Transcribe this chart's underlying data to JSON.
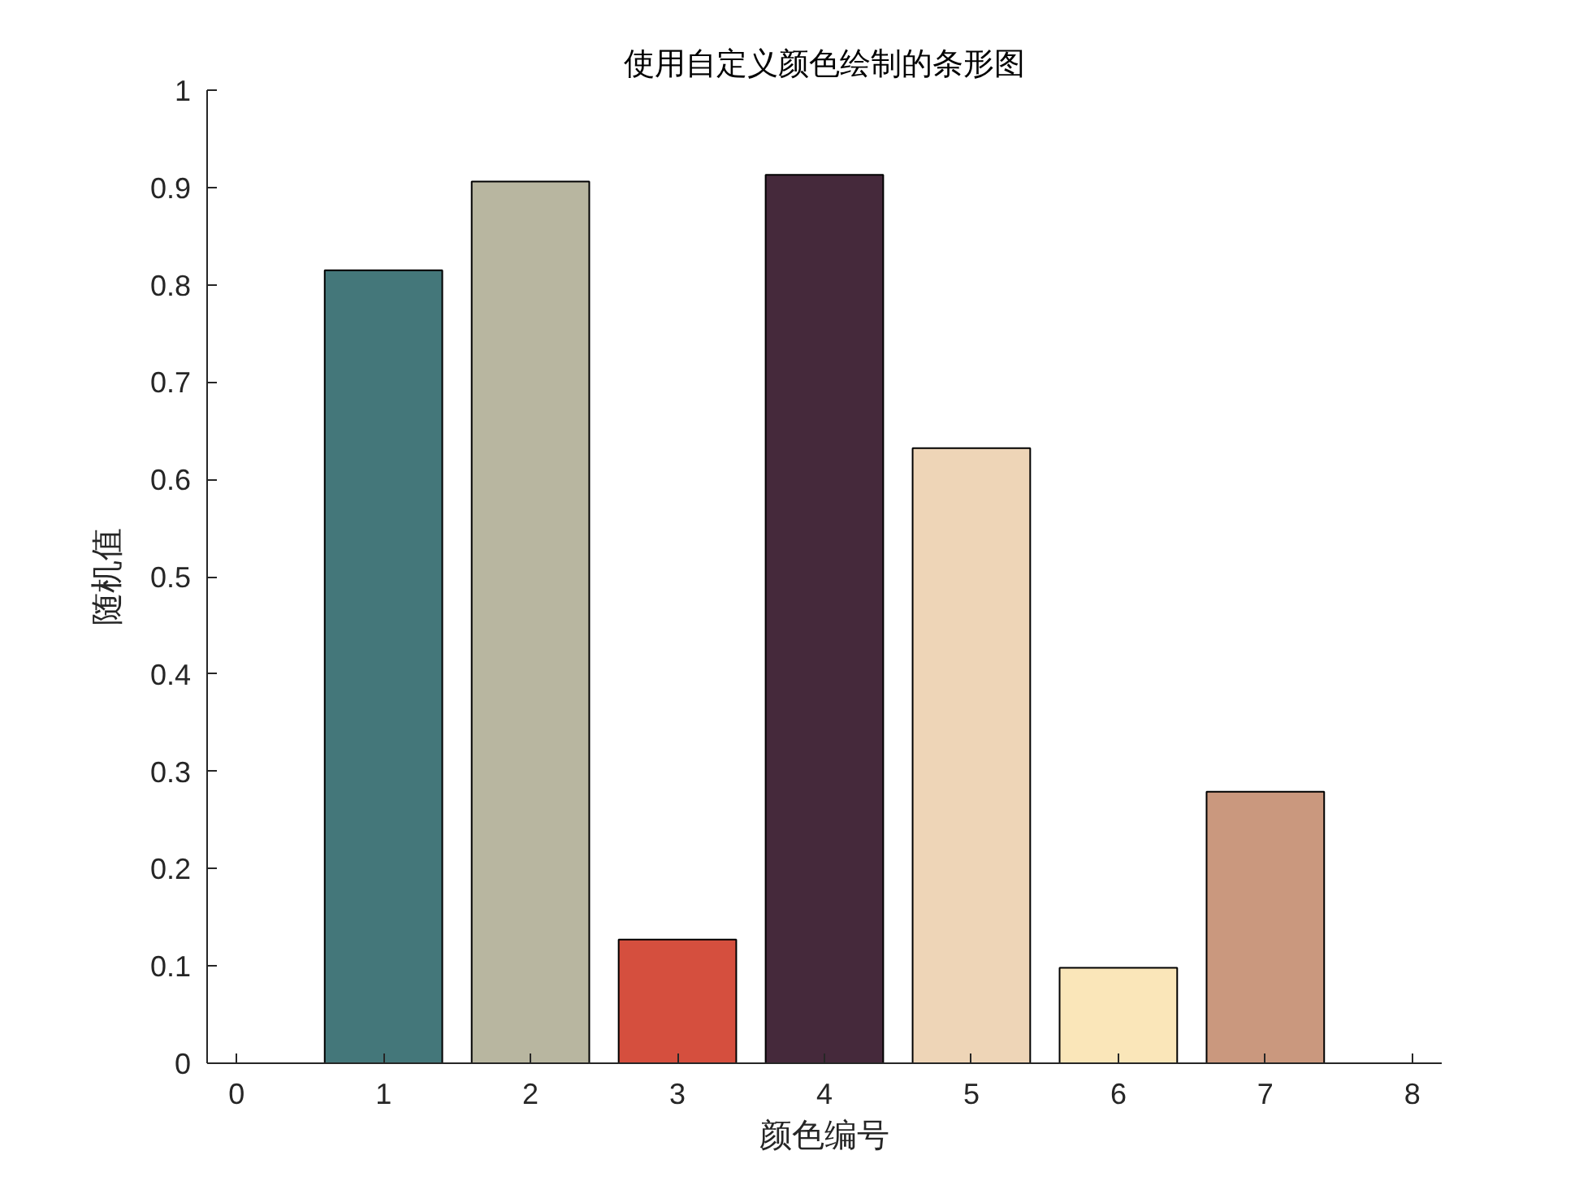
{
  "chart_data": {
    "type": "bar",
    "title": "使用自定义颜色绘制的条形图",
    "xlabel": "颜色编号",
    "ylabel": "随机值",
    "x": [
      1,
      2,
      3,
      4,
      5,
      6,
      7
    ],
    "values": [
      0.815,
      0.906,
      0.127,
      0.913,
      0.632,
      0.098,
      0.279
    ],
    "colors": [
      "#44777a",
      "#b8b6a0",
      "#d54f3e",
      "#45293b",
      "#eed5b7",
      "#fae6b9",
      "#ca987e"
    ],
    "xlim": [
      -0.2,
      8.2
    ],
    "xticks": [
      0,
      1,
      2,
      3,
      4,
      5,
      6,
      7,
      8
    ],
    "ylim": [
      0,
      1
    ],
    "yticks": [
      0,
      0.1,
      0.2,
      0.3,
      0.4,
      0.5,
      0.6,
      0.7,
      0.8,
      0.9,
      1
    ]
  }
}
